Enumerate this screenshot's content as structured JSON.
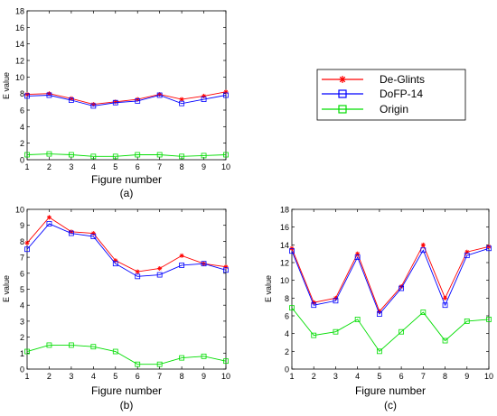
{
  "chart_data": [
    {
      "type": "line",
      "caption": "(a)",
      "xlabel": "Figure number",
      "ylabel": "E value",
      "xlim": [
        1,
        10
      ],
      "ylim": [
        0,
        18
      ],
      "xticks": [
        1,
        2,
        3,
        4,
        5,
        6,
        7,
        8,
        9,
        10
      ],
      "yticks": [
        0,
        2,
        4,
        6,
        8,
        10,
        12,
        14,
        16,
        18
      ],
      "x": [
        1,
        2,
        3,
        4,
        5,
        6,
        7,
        8,
        9,
        10
      ],
      "series": [
        {
          "name": "De-Glints",
          "color": "#ff0000",
          "marker": "asterisk",
          "values": [
            7.9,
            8.0,
            7.4,
            6.7,
            7.0,
            7.3,
            7.9,
            7.3,
            7.7,
            8.2
          ]
        },
        {
          "name": "DoFP-14",
          "color": "#0000ff",
          "marker": "square",
          "values": [
            7.7,
            7.8,
            7.2,
            6.5,
            6.9,
            7.1,
            7.8,
            6.8,
            7.3,
            7.8
          ]
        },
        {
          "name": "Origin",
          "color": "#00dd00",
          "marker": "square",
          "values": [
            0.6,
            0.7,
            0.6,
            0.4,
            0.4,
            0.6,
            0.6,
            0.4,
            0.5,
            0.6
          ]
        }
      ],
      "grid": false
    },
    {
      "type": "line",
      "caption": "(b)",
      "xlabel": "Figure number",
      "ylabel": "E value",
      "xlim": [
        1,
        10
      ],
      "ylim": [
        0,
        10
      ],
      "xticks": [
        1,
        2,
        3,
        4,
        5,
        6,
        7,
        8,
        9,
        10
      ],
      "yticks": [
        0,
        1,
        2,
        3,
        4,
        5,
        6,
        7,
        8,
        9,
        10
      ],
      "x": [
        1,
        2,
        3,
        4,
        5,
        6,
        7,
        8,
        9,
        10
      ],
      "series": [
        {
          "name": "De-Glints",
          "color": "#ff0000",
          "marker": "asterisk",
          "values": [
            7.9,
            9.5,
            8.6,
            8.5,
            6.8,
            6.1,
            6.3,
            7.1,
            6.6,
            6.4
          ]
        },
        {
          "name": "DoFP-14",
          "color": "#0000ff",
          "marker": "square",
          "values": [
            7.5,
            9.1,
            8.5,
            8.3,
            6.6,
            5.8,
            5.9,
            6.5,
            6.6,
            6.2
          ]
        },
        {
          "name": "Origin",
          "color": "#00dd00",
          "marker": "square",
          "values": [
            1.1,
            1.5,
            1.5,
            1.4,
            1.1,
            0.3,
            0.3,
            0.7,
            0.8,
            0.5
          ]
        }
      ],
      "grid": false
    },
    {
      "type": "line",
      "caption": "(c)",
      "xlabel": "Figure number",
      "ylabel": "E value",
      "xlim": [
        1,
        10
      ],
      "ylim": [
        0,
        18
      ],
      "xticks": [
        1,
        2,
        3,
        4,
        5,
        6,
        7,
        8,
        9,
        10
      ],
      "yticks": [
        0,
        2,
        4,
        6,
        8,
        10,
        12,
        14,
        16,
        18
      ],
      "x": [
        1,
        2,
        3,
        4,
        5,
        6,
        7,
        8,
        9,
        10
      ],
      "series": [
        {
          "name": "De-Glints",
          "color": "#ff0000",
          "marker": "asterisk",
          "values": [
            13.6,
            7.5,
            8.0,
            13.0,
            6.5,
            9.3,
            14.0,
            8.0,
            13.2,
            13.8
          ]
        },
        {
          "name": "DoFP-14",
          "color": "#0000ff",
          "marker": "square",
          "values": [
            13.3,
            7.2,
            7.7,
            12.6,
            6.2,
            9.1,
            13.4,
            7.2,
            12.8,
            13.6
          ]
        },
        {
          "name": "Origin",
          "color": "#00dd00",
          "marker": "square",
          "values": [
            6.9,
            3.8,
            4.2,
            5.6,
            2.0,
            4.2,
            6.4,
            3.2,
            5.4,
            5.6
          ]
        }
      ],
      "grid": false
    }
  ],
  "legend": {
    "placement": "right of (a)",
    "entries": [
      {
        "label": "De-Glints",
        "color": "#ff0000",
        "marker": "asterisk"
      },
      {
        "label": "DoFP-14",
        "color": "#0000ff",
        "marker": "square"
      },
      {
        "label": "Origin",
        "color": "#00dd00",
        "marker": "square"
      }
    ]
  }
}
